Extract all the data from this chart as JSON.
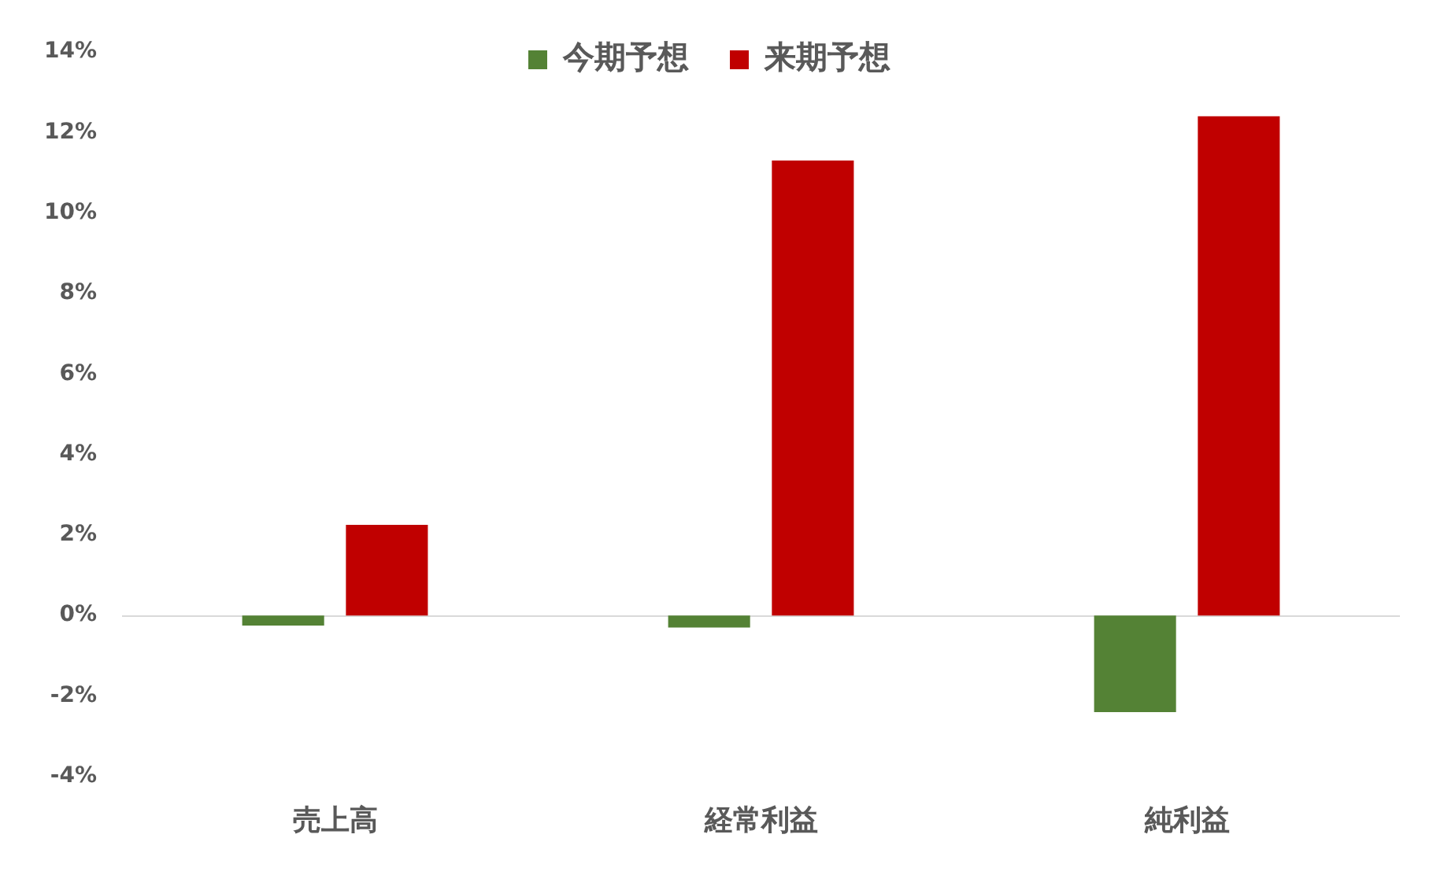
{
  "chart_data": {
    "type": "bar",
    "categories": [
      "売上高",
      "経常利益",
      "純利益"
    ],
    "series": [
      {
        "name": "今期予想",
        "color": "#548235",
        "values": [
          -0.25,
          -0.3,
          -2.4
        ]
      },
      {
        "name": "来期予想",
        "color": "#c00000",
        "values": [
          2.25,
          11.3,
          12.4
        ]
      }
    ],
    "ylim": [
      -4,
      14
    ],
    "yticks": [
      {
        "value": -4,
        "label": "-4%"
      },
      {
        "value": -2,
        "label": "-2%"
      },
      {
        "value": 0,
        "label": "0%"
      },
      {
        "value": 2,
        "label": "2%"
      },
      {
        "value": 4,
        "label": "4%"
      },
      {
        "value": 6,
        "label": "6%"
      },
      {
        "value": 8,
        "label": "8%"
      },
      {
        "value": 10,
        "label": "10%"
      },
      {
        "value": 12,
        "label": "12%"
      },
      {
        "value": 14,
        "label": "14%"
      }
    ],
    "ref_lines": [
      {
        "axis": "y",
        "value": 0,
        "color": "#d9d9d9"
      }
    ],
    "legend": "top",
    "grid": false
  }
}
